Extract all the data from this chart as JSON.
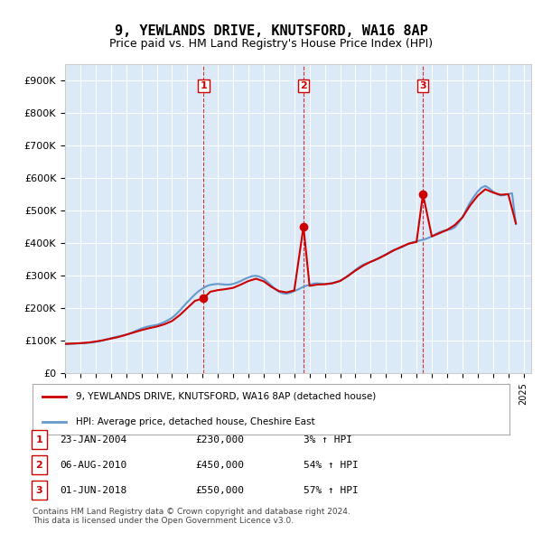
{
  "title": "9, YEWLANDS DRIVE, KNUTSFORD, WA16 8AP",
  "subtitle": "Price paid vs. HM Land Registry's House Price Index (HPI)",
  "ylabel_ticks": [
    "£0",
    "£100K",
    "£200K",
    "£300K",
    "£400K",
    "£500K",
    "£600K",
    "£700K",
    "£800K",
    "£900K"
  ],
  "ytick_values": [
    0,
    100000,
    200000,
    300000,
    400000,
    500000,
    600000,
    700000,
    800000,
    900000
  ],
  "ylim": [
    0,
    950000
  ],
  "xlim_start": 1995.0,
  "xlim_end": 2025.5,
  "background_color": "#dce9f7",
  "plot_bg_color": "#dce9f7",
  "grid_color": "#ffffff",
  "property_color": "#cc0000",
  "hpi_color": "#6699cc",
  "transaction_color": "#cc0000",
  "transactions": [
    {
      "num": 1,
      "date_label": "23-JAN-2004",
      "price": 230000,
      "pct": "3%",
      "x": 2004.07
    },
    {
      "num": 2,
      "date_label": "06-AUG-2010",
      "price": 450000,
      "pct": "54%",
      "x": 2010.6
    },
    {
      "num": 3,
      "date_label": "01-JUN-2018",
      "price": 550000,
      "pct": "57%",
      "x": 2018.42
    }
  ],
  "legend_property_label": "9, YEWLANDS DRIVE, KNUTSFORD, WA16 8AP (detached house)",
  "legend_hpi_label": "HPI: Average price, detached house, Cheshire East",
  "footnote": "Contains HM Land Registry data © Crown copyright and database right 2024.\nThis data is licensed under the Open Government Licence v3.0.",
  "hpi_data": {
    "x": [
      1995.0,
      1995.25,
      1995.5,
      1995.75,
      1996.0,
      1996.25,
      1996.5,
      1996.75,
      1997.0,
      1997.25,
      1997.5,
      1997.75,
      1998.0,
      1998.25,
      1998.5,
      1998.75,
      1999.0,
      1999.25,
      1999.5,
      1999.75,
      2000.0,
      2000.25,
      2000.5,
      2000.75,
      2001.0,
      2001.25,
      2001.5,
      2001.75,
      2002.0,
      2002.25,
      2002.5,
      2002.75,
      2003.0,
      2003.25,
      2003.5,
      2003.75,
      2004.0,
      2004.25,
      2004.5,
      2004.75,
      2005.0,
      2005.25,
      2005.5,
      2005.75,
      2006.0,
      2006.25,
      2006.5,
      2006.75,
      2007.0,
      2007.25,
      2007.5,
      2007.75,
      2008.0,
      2008.25,
      2008.5,
      2008.75,
      2009.0,
      2009.25,
      2009.5,
      2009.75,
      2010.0,
      2010.25,
      2010.5,
      2010.75,
      2011.0,
      2011.25,
      2011.5,
      2011.75,
      2012.0,
      2012.25,
      2012.5,
      2012.75,
      2013.0,
      2013.25,
      2013.5,
      2013.75,
      2014.0,
      2014.25,
      2014.5,
      2014.75,
      2015.0,
      2015.25,
      2015.5,
      2015.75,
      2016.0,
      2016.25,
      2016.5,
      2016.75,
      2017.0,
      2017.25,
      2017.5,
      2017.75,
      2018.0,
      2018.25,
      2018.5,
      2018.75,
      2019.0,
      2019.25,
      2019.5,
      2019.75,
      2020.0,
      2020.25,
      2020.5,
      2020.75,
      2021.0,
      2021.25,
      2021.5,
      2021.75,
      2022.0,
      2022.25,
      2022.5,
      2022.75,
      2023.0,
      2023.25,
      2023.5,
      2023.75,
      2024.0,
      2024.25,
      2024.5
    ],
    "y": [
      89000,
      89500,
      90000,
      91000,
      91500,
      92000,
      93000,
      94000,
      96000,
      98000,
      101000,
      104000,
      107000,
      110000,
      113000,
      115000,
      118000,
      122000,
      127000,
      132000,
      137000,
      141000,
      144000,
      146000,
      148000,
      152000,
      157000,
      163000,
      170000,
      180000,
      192000,
      205000,
      218000,
      230000,
      242000,
      252000,
      260000,
      267000,
      271000,
      273000,
      274000,
      273000,
      272000,
      272000,
      274000,
      278000,
      283000,
      289000,
      294000,
      298000,
      299000,
      296000,
      290000,
      280000,
      269000,
      258000,
      250000,
      245000,
      244000,
      247000,
      252000,
      257000,
      263000,
      268000,
      271000,
      275000,
      276000,
      275000,
      274000,
      275000,
      277000,
      280000,
      284000,
      291000,
      299000,
      308000,
      317000,
      326000,
      333000,
      338000,
      342000,
      347000,
      353000,
      359000,
      365000,
      372000,
      378000,
      382000,
      386000,
      392000,
      398000,
      402000,
      405000,
      408000,
      411000,
      415000,
      420000,
      427000,
      433000,
      437000,
      440000,
      442000,
      448000,
      462000,
      479000,
      502000,
      524000,
      542000,
      558000,
      570000,
      575000,
      568000,
      558000,
      550000,
      546000,
      547000,
      550000,
      553000,
      458000
    ]
  },
  "property_data": {
    "x": [
      1995.0,
      1995.5,
      1996.0,
      1996.5,
      1997.0,
      1997.5,
      1998.0,
      1998.5,
      1999.0,
      1999.5,
      2000.0,
      2000.5,
      2001.0,
      2001.5,
      2002.0,
      2002.5,
      2003.0,
      2003.5,
      2004.07,
      2004.5,
      2005.0,
      2005.5,
      2006.0,
      2006.5,
      2007.0,
      2007.5,
      2008.0,
      2008.5,
      2009.0,
      2009.5,
      2010.0,
      2010.6,
      2011.0,
      2011.5,
      2012.0,
      2012.5,
      2013.0,
      2013.5,
      2014.0,
      2014.5,
      2015.0,
      2015.5,
      2016.0,
      2016.5,
      2017.0,
      2017.5,
      2018.0,
      2018.42,
      2019.0,
      2019.5,
      2020.0,
      2020.5,
      2021.0,
      2021.5,
      2022.0,
      2022.5,
      2023.0,
      2023.5,
      2024.0,
      2024.5
    ],
    "y": [
      90000,
      91000,
      92000,
      94000,
      97000,
      101000,
      106000,
      111000,
      118000,
      125000,
      132000,
      138000,
      143000,
      150000,
      160000,
      178000,
      200000,
      222000,
      230000,
      250000,
      255000,
      258000,
      262000,
      272000,
      283000,
      290000,
      282000,
      265000,
      252000,
      248000,
      254000,
      450000,
      268000,
      272000,
      273000,
      276000,
      283000,
      298000,
      315000,
      330000,
      342000,
      352000,
      364000,
      377000,
      388000,
      398000,
      403000,
      550000,
      420000,
      430000,
      440000,
      455000,
      478000,
      515000,
      545000,
      565000,
      555000,
      548000,
      550000,
      460000
    ]
  }
}
